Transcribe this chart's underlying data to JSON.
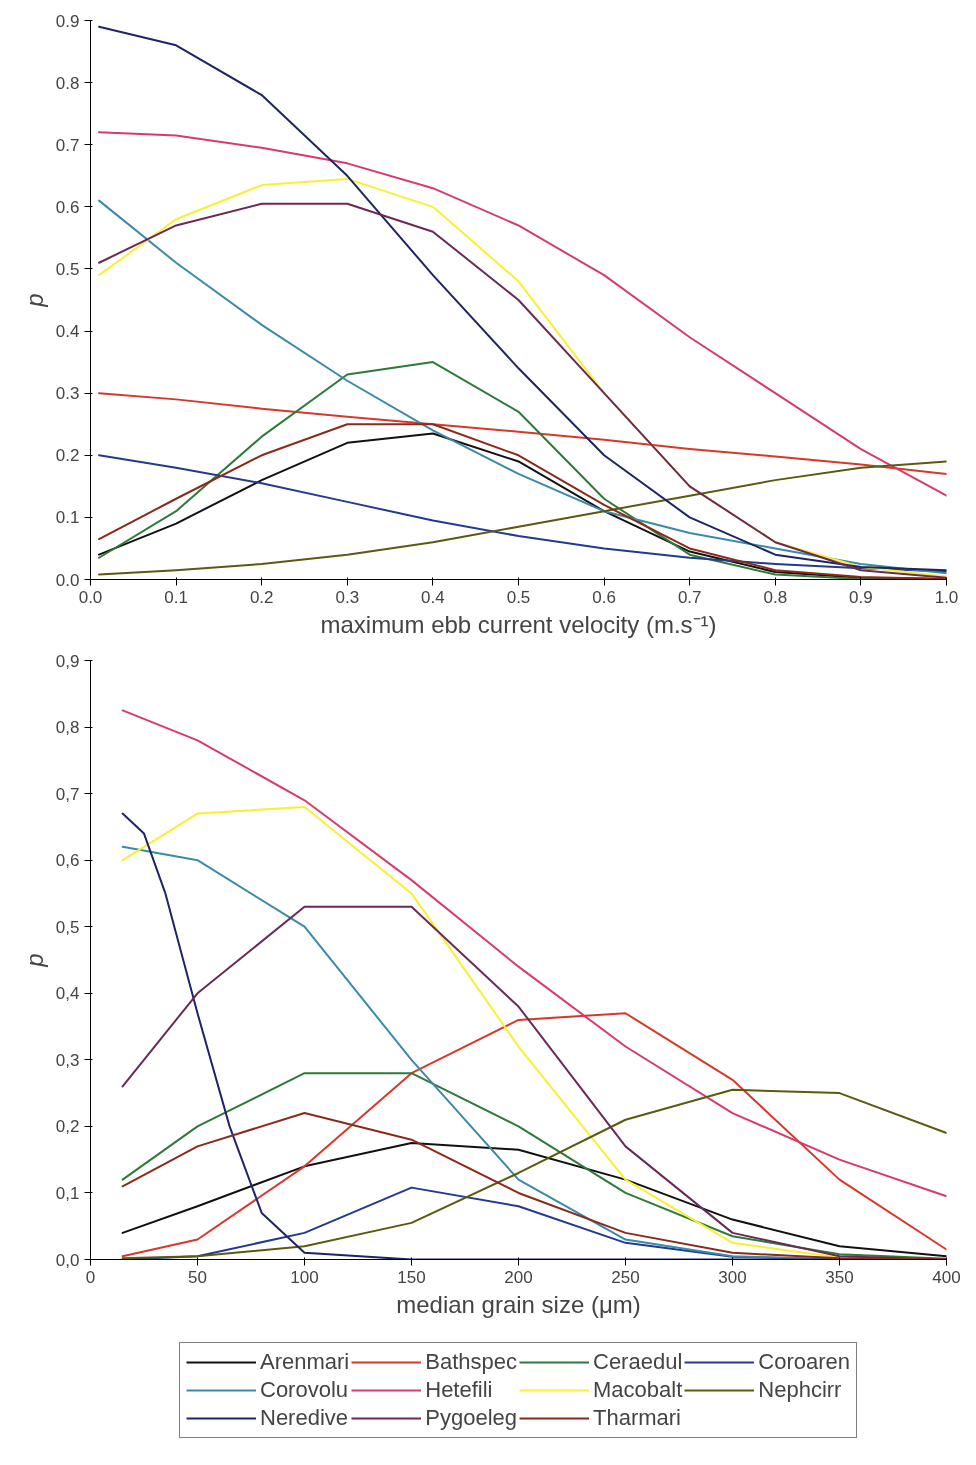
{
  "chart_data": [
    {
      "type": "line",
      "xlabel": "maximum ebb current velocity (m.s⁻¹)",
      "ylabel": "p",
      "x": [
        0.01,
        0.1,
        0.2,
        0.3,
        0.4,
        0.5,
        0.6,
        0.7,
        0.8,
        0.9,
        1.0
      ],
      "xlim": [
        0,
        1
      ],
      "ylim": [
        0,
        0.9
      ],
      "xticks": [
        {
          "value": 0,
          "label": "0.0"
        },
        {
          "value": 0.1,
          "label": "0.1"
        },
        {
          "value": 0.2,
          "label": "0.2"
        },
        {
          "value": 0.3,
          "label": "0.3"
        },
        {
          "value": 0.4,
          "label": "0.4"
        },
        {
          "value": 0.5,
          "label": "0.5"
        },
        {
          "value": 0.6,
          "label": "0.6"
        },
        {
          "value": 0.7,
          "label": "0.7"
        },
        {
          "value": 0.8,
          "label": "0.8"
        },
        {
          "value": 0.9,
          "label": "0.9"
        },
        {
          "value": 1,
          "label": "1.0"
        }
      ],
      "yticks": [
        {
          "value": 0,
          "label": "0.0"
        },
        {
          "value": 0.1,
          "label": "0.1"
        },
        {
          "value": 0.2,
          "label": "0.2"
        },
        {
          "value": 0.3,
          "label": "0.3"
        },
        {
          "value": 0.4,
          "label": "0.4"
        },
        {
          "value": 0.5,
          "label": "0.5"
        },
        {
          "value": 0.6,
          "label": "0.6"
        },
        {
          "value": 0.7,
          "label": "0.7"
        },
        {
          "value": 0.8,
          "label": "0.8"
        },
        {
          "value": 0.9,
          "label": "0.9"
        }
      ],
      "grid": false,
      "line_style": "solid",
      "series": [
        {
          "color": "#111111",
          "values": [
            0.04,
            0.09,
            0.16,
            0.22,
            0.235,
            0.19,
            0.11,
            0.045,
            0.012,
            0.003,
            0.001
          ]
        },
        {
          "color": "#d8382a",
          "values": [
            0.3,
            0.29,
            0.275,
            0.262,
            0.25,
            0.238,
            0.225,
            0.21,
            0.198,
            0.185,
            0.17
          ]
        },
        {
          "color": "#2e7a3a",
          "values": [
            0.035,
            0.11,
            0.23,
            0.33,
            0.35,
            0.27,
            0.13,
            0.04,
            0.008,
            0.001,
            0
          ]
        },
        {
          "color": "#223a90",
          "values": [
            0.2,
            0.18,
            0.155,
            0.125,
            0.095,
            0.07,
            0.05,
            0.035,
            0.025,
            0.018,
            0.013
          ]
        },
        {
          "color": "#3a8aaa",
          "values": [
            0.61,
            0.51,
            0.41,
            0.32,
            0.24,
            0.17,
            0.11,
            0.075,
            0.05,
            0.025,
            0.01
          ]
        },
        {
          "color": "#d83a70",
          "values": [
            0.72,
            0.715,
            0.695,
            0.67,
            0.63,
            0.57,
            0.49,
            0.39,
            0.3,
            0.21,
            0.135
          ]
        },
        {
          "color": "#f8f030",
          "values": [
            0.49,
            0.58,
            0.635,
            0.645,
            0.6,
            0.48,
            0.3,
            0.15,
            0.06,
            0.02,
            0.005
          ]
        },
        {
          "color": "#5a5a10",
          "values": [
            0.008,
            0.015,
            0.025,
            0.04,
            0.06,
            0.085,
            0.11,
            0.135,
            0.16,
            0.18,
            0.19
          ]
        },
        {
          "color": "#1e2466",
          "values": [
            0.89,
            0.86,
            0.78,
            0.65,
            0.49,
            0.34,
            0.2,
            0.1,
            0.04,
            0.02,
            0.015
          ]
        },
        {
          "color": "#6a2a55",
          "values": [
            0.51,
            0.57,
            0.605,
            0.605,
            0.56,
            0.45,
            0.3,
            0.15,
            0.06,
            0.015,
            0.003
          ]
        },
        {
          "color": "#8a2a1a",
          "values": [
            0.065,
            0.13,
            0.2,
            0.25,
            0.25,
            0.2,
            0.12,
            0.05,
            0.015,
            0.004,
            0.001
          ]
        }
      ]
    },
    {
      "type": "line",
      "xlabel": "median grain size (μm)",
      "ylabel": "p",
      "x": [
        15,
        50,
        100,
        150,
        200,
        250,
        300,
        350,
        400
      ],
      "xlim": [
        0,
        400
      ],
      "ylim": [
        0,
        0.9
      ],
      "xticks": [
        0,
        50,
        100,
        150,
        200,
        250,
        300,
        350,
        400
      ],
      "yticks": [
        {
          "value": 0,
          "label": "0,0"
        },
        {
          "value": 0.1,
          "label": "0,1"
        },
        {
          "value": 0.2,
          "label": "0,2"
        },
        {
          "value": 0.3,
          "label": "0,3"
        },
        {
          "value": 0.4,
          "label": "0,4"
        },
        {
          "value": 0.5,
          "label": "0,5"
        },
        {
          "value": 0.6,
          "label": "0,6"
        },
        {
          "value": 0.7,
          "label": "0,7"
        },
        {
          "value": 0.8,
          "label": "0,8"
        },
        {
          "value": 0.9,
          "label": "0,9"
        }
      ],
      "grid": false,
      "line_style": "solid",
      "legend": "bottom",
      "series": [
        {
          "name": "Arenmari",
          "color": "#111111",
          "values": [
            0.04,
            0.08,
            0.14,
            0.175,
            0.165,
            0.12,
            0.06,
            0.02,
            0.005
          ]
        },
        {
          "name": "Bathspec",
          "color": "#d8382a",
          "values": [
            0.005,
            0.03,
            0.14,
            0.28,
            0.36,
            0.37,
            0.27,
            0.12,
            0.015
          ]
        },
        {
          "name": "Ceraedul",
          "color": "#2e7a3a",
          "values": [
            0.12,
            0.2,
            0.28,
            0.28,
            0.2,
            0.1,
            0.035,
            0.008,
            0.001
          ]
        },
        {
          "name": "Coroaren",
          "color": "#223a90",
          "values": [
            0,
            0.005,
            0.04,
            0.108,
            0.08,
            0.025,
            0.004,
            0,
            0
          ]
        },
        {
          "name": "Corovolu",
          "color": "#3a8aaa",
          "values": [
            0.62,
            0.6,
            0.5,
            0.3,
            0.12,
            0.03,
            0.005,
            0,
            0
          ]
        },
        {
          "name": "Hetefili",
          "color": "#d83a70",
          "values": [
            0.825,
            0.78,
            0.69,
            0.57,
            0.44,
            0.32,
            0.22,
            0.15,
            0.095
          ]
        },
        {
          "name": "Macobalt",
          "color": "#f8f030",
          "values": [
            0.6,
            0.67,
            0.68,
            0.55,
            0.32,
            0.12,
            0.025,
            0.003,
            0
          ]
        },
        {
          "name": "Nephcirr",
          "color": "#5a5a10",
          "values": [
            0.002,
            0.005,
            0.02,
            0.055,
            0.13,
            0.21,
            0.255,
            0.25,
            0.19
          ]
        },
        {
          "name": "Neredive",
          "color": "#1e2466",
          "x": [
            15,
            25,
            35,
            50,
            65,
            80,
            100,
            150,
            200,
            300,
            400
          ],
          "values": [
            0.67,
            0.64,
            0.55,
            0.37,
            0.2,
            0.07,
            0.01,
            0,
            0,
            0,
            0
          ]
        },
        {
          "name": "Pygoeleg",
          "color": "#6a2a55",
          "values": [
            0.26,
            0.4,
            0.53,
            0.53,
            0.38,
            0.17,
            0.04,
            0.005,
            0
          ]
        },
        {
          "name": "Tharmari",
          "color": "#8a2a1a",
          "values": [
            0.11,
            0.17,
            0.22,
            0.18,
            0.1,
            0.04,
            0.01,
            0.002,
            0
          ]
        }
      ]
    }
  ]
}
